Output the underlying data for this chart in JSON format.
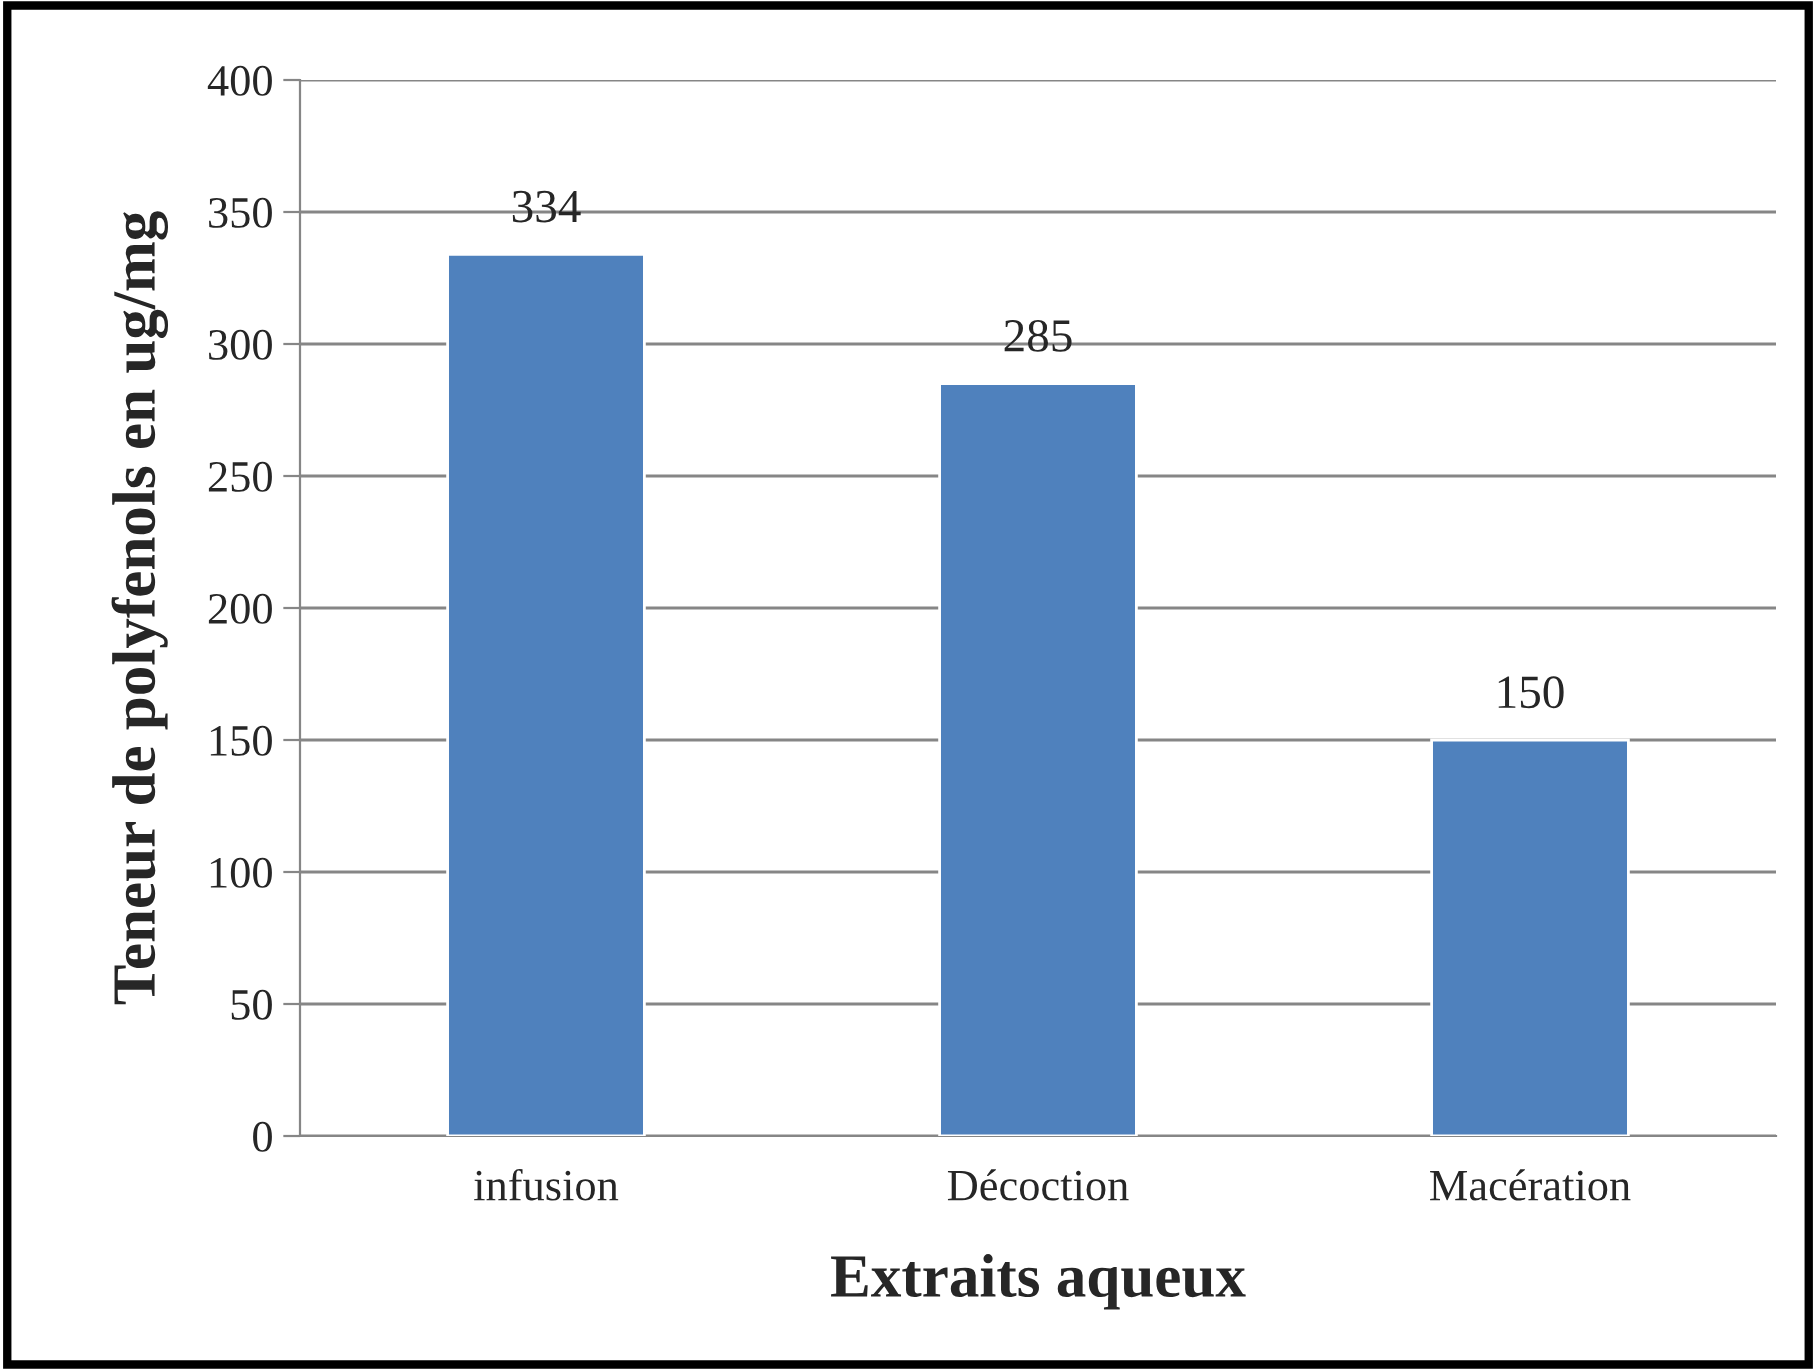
{
  "chart_data": {
    "type": "bar",
    "xlabel": "Extraits aqueux",
    "ylabel": "Teneur de polyfenols en ug/mg",
    "categories": [
      "infusion",
      "Décoction",
      "Macération"
    ],
    "values": [
      334,
      285,
      150
    ],
    "color": "#4f81bd",
    "ylim": [
      0,
      400
    ],
    "yticks": [
      0,
      50,
      100,
      150,
      200,
      250,
      300,
      350,
      400
    ],
    "grid": "y",
    "data_labels": true
  }
}
